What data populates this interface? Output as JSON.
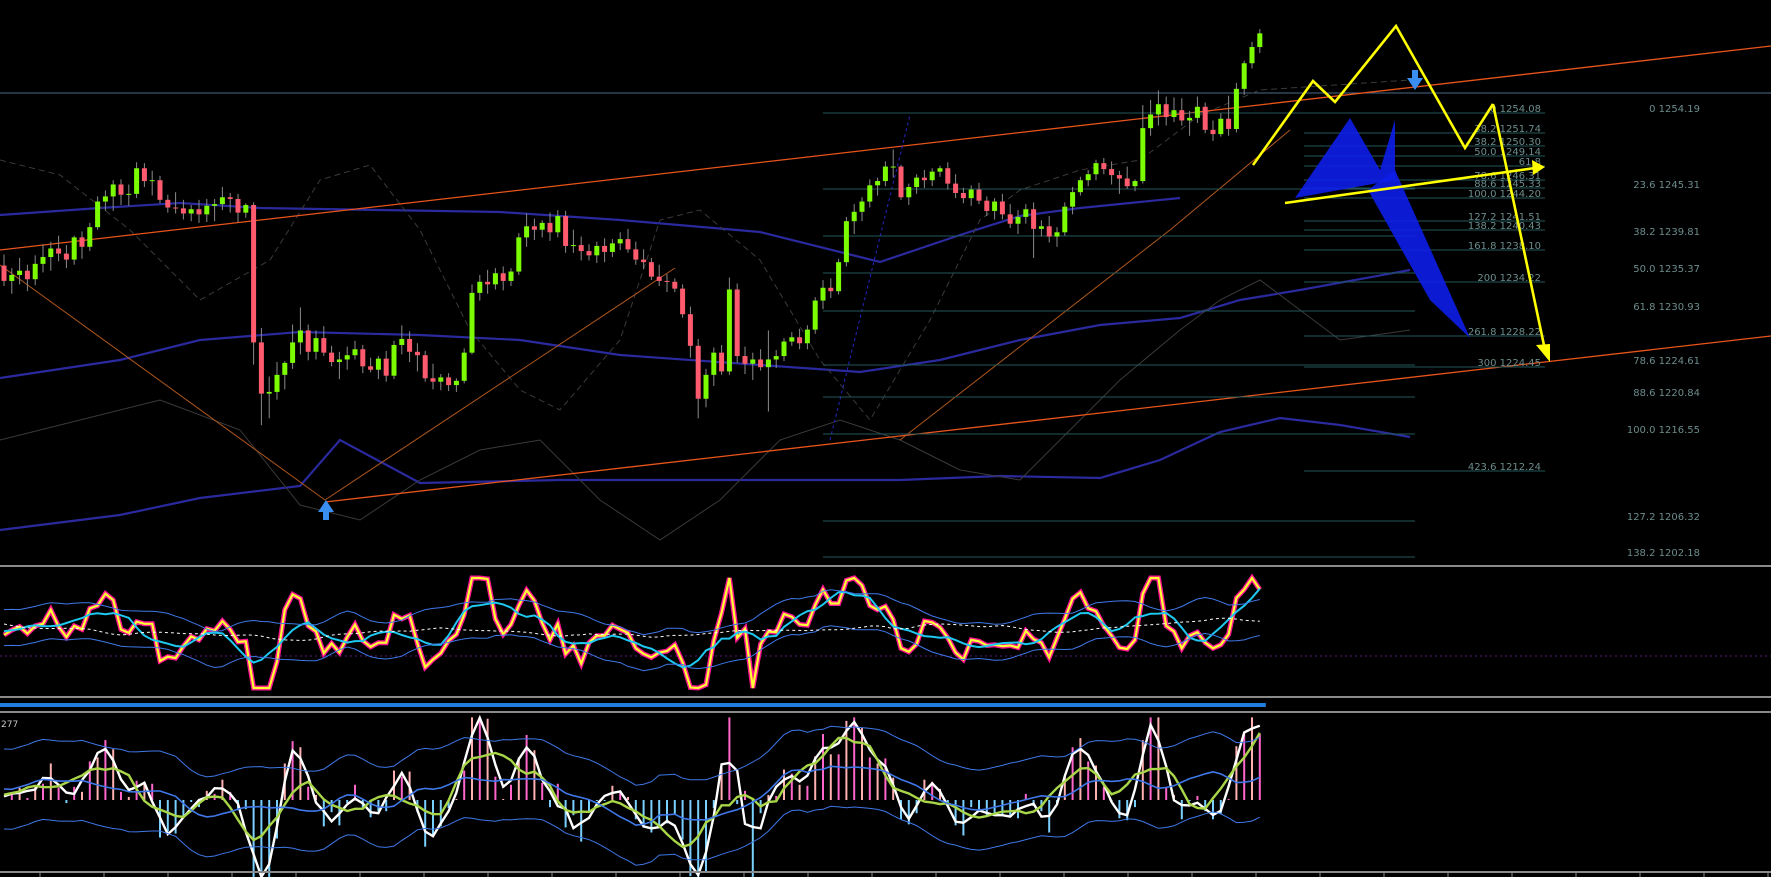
{
  "chart_data": [
    {
      "type": "candlestick",
      "panel": "price",
      "colors": {
        "up": "#7CFC00",
        "down": "#FF5A6E",
        "wick": "#8a8a8a",
        "bollinger": "#2a2a9e",
        "channel": "#E8541C",
        "pattern": "#FFFF00",
        "fib_text": "#6c8c8c",
        "fill": "#0d1ee8"
      },
      "candles": [
        [
          1236.2,
          1237.5,
          1233.8,
          1234.4
        ],
        [
          1234.4,
          1235.9,
          1232.9,
          1235.1
        ],
        [
          1235.1,
          1237.1,
          1234.0,
          1235.6
        ],
        [
          1235.6,
          1236.3,
          1233.2,
          1234.6
        ],
        [
          1234.6,
          1237.4,
          1233.9,
          1236.4
        ],
        [
          1236.4,
          1238.7,
          1235.4,
          1237.2
        ],
        [
          1237.2,
          1239.0,
          1235.6,
          1238.2
        ],
        [
          1238.2,
          1239.7,
          1236.7,
          1237.6
        ],
        [
          1237.6,
          1238.6,
          1235.9,
          1236.9
        ],
        [
          1236.9,
          1239.7,
          1236.3,
          1239.5
        ],
        [
          1239.5,
          1240.2,
          1237.0,
          1238.4
        ],
        [
          1238.4,
          1241.2,
          1237.9,
          1240.7
        ],
        [
          1240.7,
          1244.3,
          1240.4,
          1243.7
        ],
        [
          1243.7,
          1245.0,
          1242.6,
          1244.3
        ],
        [
          1244.3,
          1246.2,
          1242.6,
          1245.7
        ],
        [
          1245.7,
          1246.3,
          1243.3,
          1244.5
        ],
        [
          1244.5,
          1245.7,
          1243.2,
          1244.6
        ],
        [
          1244.6,
          1248.3,
          1244.1,
          1247.6
        ],
        [
          1247.6,
          1248.2,
          1245.4,
          1246.1
        ],
        [
          1246.1,
          1247.3,
          1244.4,
          1246.2
        ],
        [
          1246.2,
          1246.7,
          1243.5,
          1243.9
        ],
        [
          1243.9,
          1244.5,
          1242.4,
          1243.0
        ],
        [
          1243.0,
          1244.8,
          1242.3,
          1242.9
        ],
        [
          1242.9,
          1243.9,
          1241.6,
          1242.3
        ],
        [
          1242.3,
          1243.3,
          1241.4,
          1242.8
        ],
        [
          1242.8,
          1243.9,
          1241.2,
          1242.2
        ],
        [
          1242.2,
          1244.0,
          1241.3,
          1243.2
        ],
        [
          1243.2,
          1244.0,
          1241.4,
          1243.4
        ],
        [
          1243.4,
          1245.4,
          1242.7,
          1244.2
        ],
        [
          1244.2,
          1244.7,
          1242.4,
          1244.0
        ],
        [
          1244.0,
          1244.6,
          1241.3,
          1242.4
        ],
        [
          1242.4,
          1243.5,
          1241.8,
          1243.3
        ],
        [
          1243.3,
          1243.6,
          1224.6,
          1227.2
        ],
        [
          1227.2,
          1228.9,
          1217.5,
          1221.2
        ],
        [
          1221.2,
          1223.2,
          1218.3,
          1221.4
        ],
        [
          1221.4,
          1224.9,
          1220.5,
          1223.4
        ],
        [
          1223.4,
          1225.0,
          1221.7,
          1224.8
        ],
        [
          1224.8,
          1229.3,
          1224.1,
          1227.2
        ],
        [
          1227.2,
          1231.3,
          1225.8,
          1228.6
        ],
        [
          1228.6,
          1229.3,
          1225.1,
          1226.1
        ],
        [
          1226.1,
          1228.6,
          1225.2,
          1227.7
        ],
        [
          1227.7,
          1229.1,
          1225.6,
          1226.0
        ],
        [
          1226.0,
          1226.8,
          1224.4,
          1224.9
        ],
        [
          1224.9,
          1226.1,
          1222.9,
          1225.2
        ],
        [
          1225.2,
          1226.7,
          1224.0,
          1225.7
        ],
        [
          1225.7,
          1227.4,
          1225.2,
          1226.4
        ],
        [
          1226.4,
          1226.9,
          1223.6,
          1224.4
        ],
        [
          1224.4,
          1225.4,
          1223.7,
          1224.0
        ],
        [
          1224.0,
          1225.6,
          1222.9,
          1225.3
        ],
        [
          1225.3,
          1226.2,
          1222.6,
          1223.3
        ],
        [
          1223.3,
          1227.4,
          1222.9,
          1226.9
        ],
        [
          1226.9,
          1229.2,
          1225.8,
          1227.6
        ],
        [
          1227.6,
          1228.5,
          1224.9,
          1226.1
        ],
        [
          1226.1,
          1227.1,
          1223.8,
          1225.7
        ],
        [
          1225.7,
          1226.2,
          1222.6,
          1223.0
        ],
        [
          1223.0,
          1224.7,
          1221.7,
          1222.6
        ],
        [
          1222.6,
          1223.5,
          1221.6,
          1223.1
        ],
        [
          1223.1,
          1223.6,
          1221.5,
          1222.2
        ],
        [
          1222.2,
          1223.0,
          1221.4,
          1222.7
        ],
        [
          1222.7,
          1226.5,
          1222.4,
          1226.0
        ],
        [
          1226.0,
          1234.0,
          1225.8,
          1233.0
        ],
        [
          1233.0,
          1235.1,
          1232.1,
          1234.3
        ],
        [
          1234.3,
          1235.7,
          1232.9,
          1234.0
        ],
        [
          1234.0,
          1235.9,
          1233.4,
          1235.3
        ],
        [
          1235.3,
          1236.1,
          1233.3,
          1234.4
        ],
        [
          1234.4,
          1235.9,
          1233.8,
          1235.5
        ],
        [
          1235.5,
          1240.0,
          1235.1,
          1239.5
        ],
        [
          1239.5,
          1242.3,
          1238.4,
          1240.8
        ],
        [
          1240.8,
          1241.7,
          1239.2,
          1240.4
        ],
        [
          1240.4,
          1241.5,
          1239.5,
          1241.2
        ],
        [
          1241.2,
          1242.4,
          1239.1,
          1240.1
        ],
        [
          1240.1,
          1242.7,
          1239.5,
          1242.0
        ],
        [
          1242.0,
          1242.6,
          1237.7,
          1238.5
        ],
        [
          1238.5,
          1240.4,
          1237.7,
          1238.6
        ],
        [
          1238.6,
          1239.6,
          1236.8,
          1237.9
        ],
        [
          1237.9,
          1238.7,
          1236.8,
          1237.4
        ],
        [
          1237.4,
          1239.0,
          1236.5,
          1238.5
        ],
        [
          1238.5,
          1239.4,
          1236.6,
          1237.8
        ],
        [
          1237.8,
          1239.3,
          1237.2,
          1238.8
        ],
        [
          1238.8,
          1240.1,
          1238.0,
          1239.3
        ],
        [
          1239.3,
          1240.5,
          1237.7,
          1238.1
        ],
        [
          1238.1,
          1239.0,
          1236.3,
          1236.9
        ],
        [
          1236.9,
          1238.1,
          1235.8,
          1236.6
        ],
        [
          1236.6,
          1237.1,
          1234.5,
          1234.9
        ],
        [
          1234.9,
          1236.3,
          1233.8,
          1234.4
        ],
        [
          1234.4,
          1235.2,
          1233.1,
          1234.3
        ],
        [
          1234.3,
          1234.7,
          1233.1,
          1233.5
        ],
        [
          1233.5,
          1234.0,
          1230.1,
          1230.5
        ],
        [
          1230.5,
          1231.4,
          1225.4,
          1226.8
        ],
        [
          1226.8,
          1227.6,
          1218.3,
          1220.6
        ],
        [
          1220.6,
          1224.1,
          1219.6,
          1223.4
        ],
        [
          1223.4,
          1226.6,
          1222.1,
          1226.0
        ],
        [
          1226.0,
          1226.9,
          1223.4,
          1223.8
        ],
        [
          1223.8,
          1234.8,
          1223.4,
          1233.4
        ],
        [
          1233.4,
          1234.1,
          1224.8,
          1225.6
        ],
        [
          1225.6,
          1226.7,
          1223.5,
          1224.7
        ],
        [
          1224.7,
          1226.0,
          1222.8,
          1225.2
        ],
        [
          1225.2,
          1226.4,
          1223.9,
          1224.3
        ],
        [
          1224.3,
          1228.6,
          1219.1,
          1225.2
        ],
        [
          1225.2,
          1226.3,
          1224.2,
          1225.6
        ],
        [
          1225.6,
          1227.7,
          1225.0,
          1227.3
        ],
        [
          1227.3,
          1228.4,
          1226.8,
          1227.8
        ],
        [
          1227.8,
          1228.8,
          1226.4,
          1227.1
        ],
        [
          1227.1,
          1229.2,
          1226.4,
          1228.7
        ],
        [
          1228.7,
          1232.5,
          1228.2,
          1232.1
        ],
        [
          1232.1,
          1234.5,
          1231.1,
          1233.6
        ],
        [
          1233.6,
          1234.7,
          1232.4,
          1233.2
        ],
        [
          1233.2,
          1237.0,
          1232.8,
          1236.6
        ],
        [
          1236.6,
          1241.9,
          1236.1,
          1241.4
        ],
        [
          1241.4,
          1243.4,
          1239.9,
          1242.5
        ],
        [
          1242.5,
          1244.2,
          1241.4,
          1243.7
        ],
        [
          1243.7,
          1246.3,
          1243.0,
          1245.6
        ],
        [
          1245.6,
          1246.5,
          1244.4,
          1246.1
        ],
        [
          1246.1,
          1248.4,
          1245.5,
          1247.8
        ],
        [
          1247.8,
          1249.8,
          1246.5,
          1247.8
        ],
        [
          1247.8,
          1248.0,
          1243.9,
          1244.2
        ],
        [
          1244.2,
          1245.8,
          1243.3,
          1245.4
        ],
        [
          1245.4,
          1246.9,
          1244.6,
          1246.5
        ],
        [
          1246.5,
          1247.4,
          1245.3,
          1246.2
        ],
        [
          1246.2,
          1247.6,
          1245.5,
          1247.2
        ],
        [
          1247.2,
          1247.9,
          1246.6,
          1247.6
        ],
        [
          1247.6,
          1248.3,
          1245.1,
          1245.8
        ],
        [
          1245.8,
          1246.9,
          1244.1,
          1244.7
        ],
        [
          1244.7,
          1245.3,
          1243.5,
          1244.1
        ],
        [
          1244.1,
          1245.6,
          1243.2,
          1245.1
        ],
        [
          1245.1,
          1245.9,
          1243.4,
          1243.8
        ],
        [
          1243.8,
          1244.3,
          1242.0,
          1242.6
        ],
        [
          1242.6,
          1244.1,
          1241.6,
          1243.7
        ],
        [
          1243.7,
          1244.6,
          1241.6,
          1242.2
        ],
        [
          1242.2,
          1243.4,
          1240.6,
          1241.1
        ],
        [
          1241.1,
          1242.7,
          1239.9,
          1241.9
        ],
        [
          1241.9,
          1243.4,
          1241.1,
          1242.8
        ],
        [
          1242.8,
          1243.6,
          1237.1,
          1240.5
        ],
        [
          1240.5,
          1241.5,
          1239.6,
          1240.8
        ],
        [
          1240.8,
          1242.0,
          1238.9,
          1239.6
        ],
        [
          1239.6,
          1240.7,
          1238.4,
          1240.1
        ],
        [
          1240.1,
          1243.6,
          1239.7,
          1243.1
        ],
        [
          1243.1,
          1245.4,
          1242.2,
          1244.8
        ],
        [
          1244.8,
          1246.6,
          1244.4,
          1246.2
        ],
        [
          1246.2,
          1247.4,
          1245.5,
          1246.9
        ],
        [
          1246.9,
          1248.6,
          1246.2,
          1248.2
        ],
        [
          1248.2,
          1248.8,
          1246.9,
          1247.5
        ],
        [
          1247.5,
          1248.4,
          1245.7,
          1246.8
        ],
        [
          1246.8,
          1247.3,
          1244.6,
          1246.4
        ],
        [
          1246.4,
          1247.8,
          1245.2,
          1245.5
        ],
        [
          1245.5,
          1246.3,
          1244.9,
          1246.1
        ],
        [
          1246.1,
          1255.0,
          1245.8,
          1252.3
        ],
        [
          1252.3,
          1255.6,
          1251.4,
          1253.9
        ],
        [
          1253.9,
          1256.7,
          1252.6,
          1255.1
        ],
        [
          1255.1,
          1256.0,
          1252.6,
          1253.6
        ],
        [
          1253.6,
          1255.9,
          1253.0,
          1254.4
        ],
        [
          1254.4,
          1255.8,
          1252.6,
          1253.2
        ],
        [
          1253.2,
          1254.3,
          1251.4,
          1253.5
        ],
        [
          1253.5,
          1256.0,
          1252.9,
          1254.8
        ],
        [
          1254.8,
          1255.3,
          1251.7,
          1252.1
        ],
        [
          1252.1,
          1253.2,
          1250.8,
          1251.6
        ],
        [
          1251.6,
          1254.0,
          1251.3,
          1253.4
        ],
        [
          1253.4,
          1256.1,
          1251.4,
          1252.2
        ],
        [
          1252.2,
          1257.6,
          1251.8,
          1256.9
        ],
        [
          1256.9,
          1260.2,
          1256.2,
          1259.9
        ],
        [
          1259.9,
          1262.4,
          1259.3,
          1261.8
        ],
        [
          1261.8,
          1263.9,
          1261.1,
          1263.4
        ]
      ],
      "fib_levels_right": [
        "0 1254.19",
        "23.6 1245.31",
        "38.2 1239.81",
        "50.0 1235.37",
        "61.8 1230.93",
        "78.6 1224.61",
        "88.6 1220.84",
        "100.0 1216.55",
        "127.2 1206.32",
        "138.2 1202.18"
      ],
      "fib_levels_mid": [
        "0 1254.08",
        "38.2 1251.74",
        "38.2 1250.30",
        "50.0 1249.14",
        "61.8",
        "78.6 1246.31",
        "88.6 1245.33",
        "100.0 1244.20",
        "127.2 1241.51",
        "138.2 1240.43",
        "161.8 1238.10",
        "200 1234.22",
        "261.8 1228.22",
        "300 1224.45",
        "423.6 1212.24"
      ]
    },
    {
      "type": "line",
      "panel": "oscillator-1",
      "series_count": 6,
      "colors": [
        "#FF1493",
        "#FFFF33",
        "#1EC8F0",
        "#3f78e8",
        "#3f78e8",
        "#ffffff"
      ]
    },
    {
      "type": "bar",
      "panel": "oscillator-2",
      "label": "277",
      "colors": [
        "#ff66cc",
        "#ffb0b0",
        "#7ad0ff",
        "#a8d648",
        "#ffffff",
        "#3f78e8"
      ]
    }
  ]
}
